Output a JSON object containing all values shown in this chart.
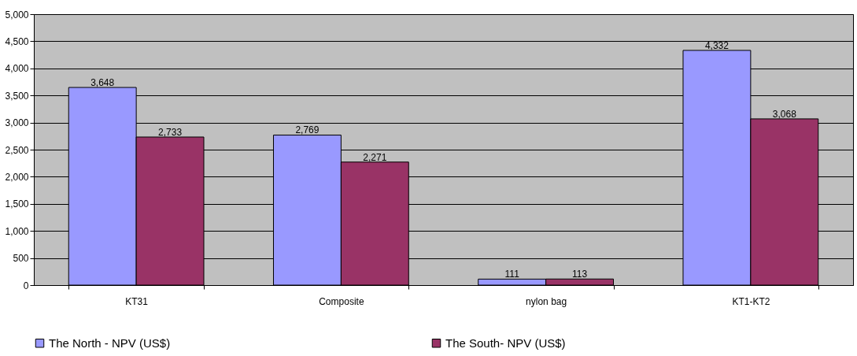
{
  "chart_data": {
    "type": "bar",
    "categories": [
      "KT31",
      "Composite",
      "nylon bag",
      "KT1-KT2"
    ],
    "series": [
      {
        "name": "The North - NPV (US$)",
        "color": "#9999ff",
        "values": [
          3648,
          2769,
          111,
          4332
        ],
        "value_labels": [
          "3,648",
          "2,769",
          "111",
          "4,332"
        ]
      },
      {
        "name": "The South- NPV (US$)",
        "color": "#993366",
        "values": [
          2733,
          2271,
          113,
          3068
        ],
        "value_labels": [
          "2,733",
          "2,271",
          "113",
          "3,068"
        ]
      }
    ],
    "ylim": [
      0,
      5000
    ],
    "yticks": [
      0,
      500,
      {
        "value": 1000,
        "label": "1,000"
      },
      {
        "value": 1500,
        "label": "1,500"
      },
      {
        "value": 2000,
        "label": "2,000"
      },
      {
        "value": 2500,
        "label": "2,500"
      },
      {
        "value": 3000,
        "label": "3,000"
      },
      {
        "value": 3500,
        "label": "3,500"
      },
      {
        "value": 4000,
        "label": "4,000"
      },
      {
        "value": 4500,
        "label": "4,500"
      },
      {
        "value": 5000,
        "label": "5,000"
      }
    ],
    "grid": "y",
    "legend": "bottom"
  }
}
